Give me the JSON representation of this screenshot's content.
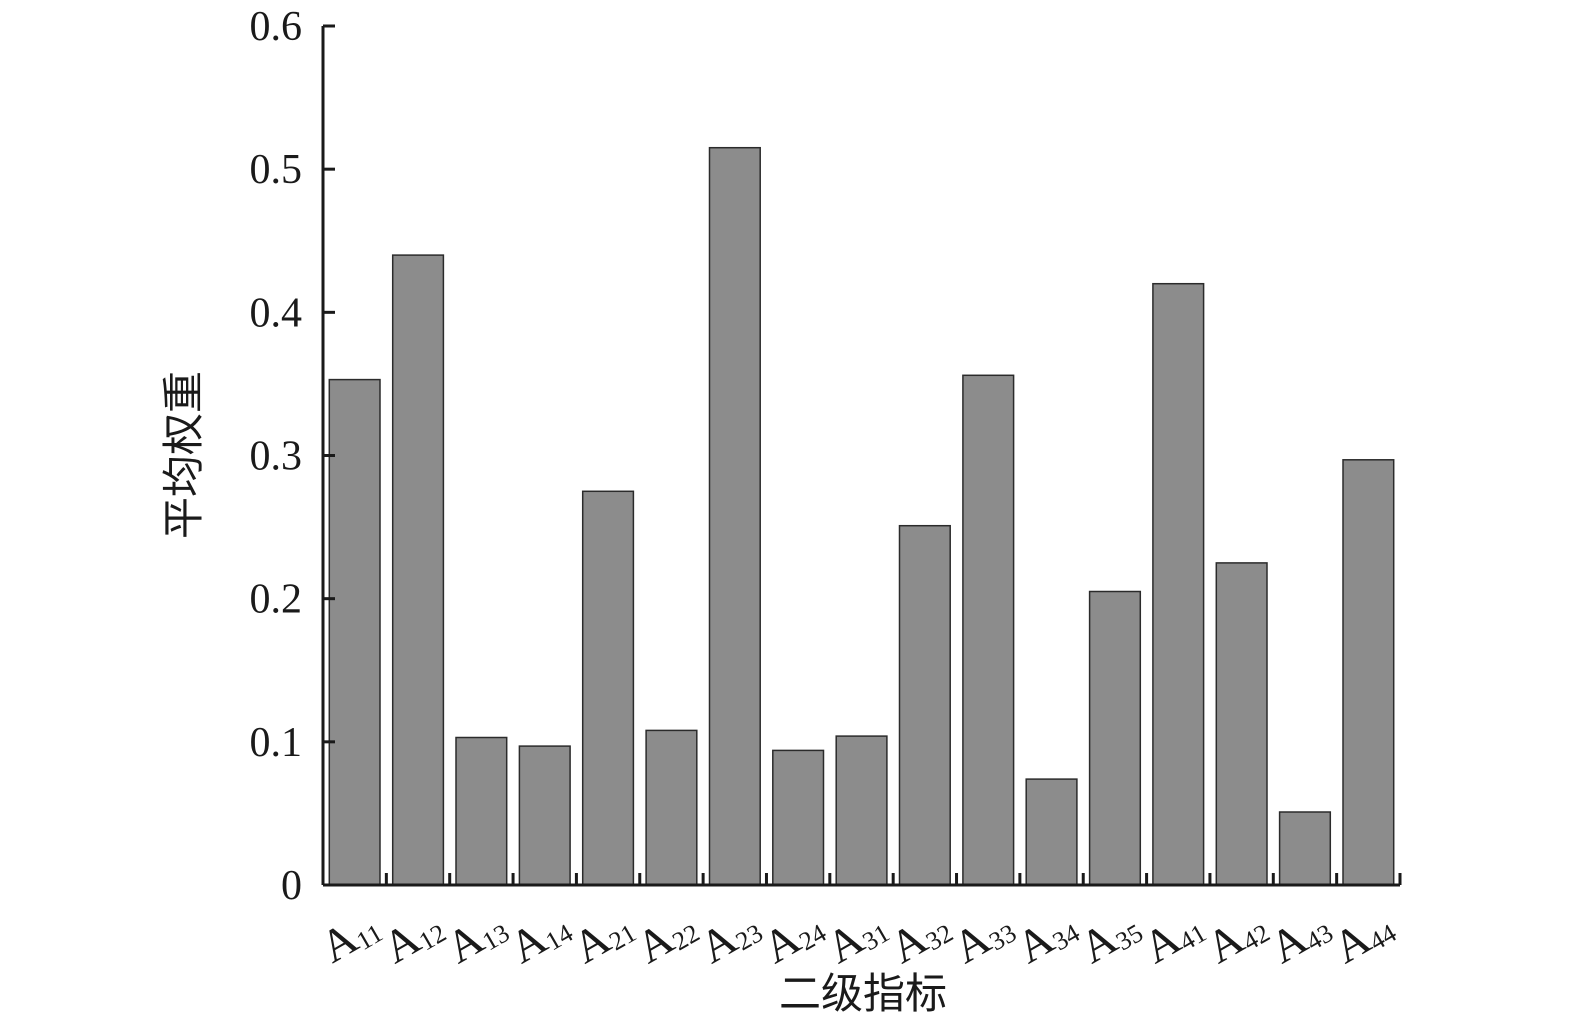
{
  "chart_data": {
    "type": "bar",
    "xlabel": "二级指标",
    "ylabel": "平均权重",
    "ylim": [
      0,
      0.6
    ],
    "yticks": [
      "0",
      "0.1",
      "0.2",
      "0.3",
      "0.4",
      "0.5",
      "0.6"
    ],
    "categories": [
      {
        "main": "A",
        "sub": "11"
      },
      {
        "main": "A",
        "sub": "12"
      },
      {
        "main": "A",
        "sub": "13"
      },
      {
        "main": "A",
        "sub": "14"
      },
      {
        "main": "A",
        "sub": "21"
      },
      {
        "main": "A",
        "sub": "22"
      },
      {
        "main": "A",
        "sub": "23"
      },
      {
        "main": "A",
        "sub": "24"
      },
      {
        "main": "A",
        "sub": "31"
      },
      {
        "main": "A",
        "sub": "32"
      },
      {
        "main": "A",
        "sub": "33"
      },
      {
        "main": "A",
        "sub": "34"
      },
      {
        "main": "A",
        "sub": "35"
      },
      {
        "main": "A",
        "sub": "41"
      },
      {
        "main": "A",
        "sub": "42"
      },
      {
        "main": "A",
        "sub": "43"
      },
      {
        "main": "A",
        "sub": "44"
      }
    ],
    "values": [
      0.353,
      0.44,
      0.103,
      0.097,
      0.275,
      0.108,
      0.515,
      0.094,
      0.104,
      0.251,
      0.356,
      0.074,
      0.205,
      0.42,
      0.225,
      0.051,
      0.297
    ],
    "bar_color": "#8c8c8c",
    "bar_edge_color": "#2b2b2b",
    "grid": false,
    "legend": "none"
  }
}
